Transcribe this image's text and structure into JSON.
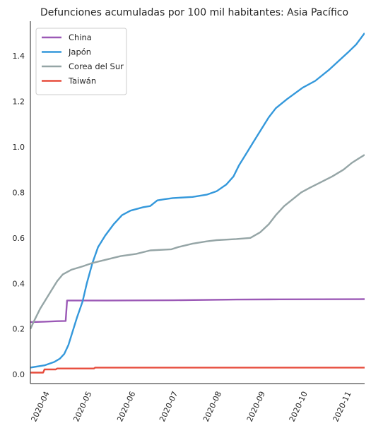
{
  "chart_data": {
    "type": "line",
    "title": "Defunciones acumuladas por 100 mil habitantes: Asia Pacífico",
    "xlabel": "",
    "ylabel": "",
    "x_range": [
      "2020-03-22",
      "2020-11-14"
    ],
    "ylim": [
      -0.04,
      1.54
    ],
    "y_ticks": [
      "0.0",
      "0.2",
      "0.4",
      "0.6",
      "0.8",
      "1.0",
      "1.2",
      "1.4"
    ],
    "x_ticks": [
      {
        "date": "2020-04-01",
        "label": "2020-04"
      },
      {
        "date": "2020-05-01",
        "label": "2020-05"
      },
      {
        "date": "2020-06-01",
        "label": "2020-06"
      },
      {
        "date": "2020-07-01",
        "label": "2020-07"
      },
      {
        "date": "2020-08-01",
        "label": "2020-08"
      },
      {
        "date": "2020-09-01",
        "label": "2020-09"
      },
      {
        "date": "2020-10-01",
        "label": "2020-10"
      },
      {
        "date": "2020-11-01",
        "label": "2020-11"
      }
    ],
    "grid": false,
    "legend_position": "top-left",
    "series": [
      {
        "name": "China",
        "color": "#9b59b6",
        "points": [
          [
            "2020-03-22",
            0.23
          ],
          [
            "2020-04-01",
            0.232
          ],
          [
            "2020-04-10",
            0.234
          ],
          [
            "2020-04-16",
            0.235
          ],
          [
            "2020-04-17",
            0.325
          ],
          [
            "2020-05-15",
            0.325
          ],
          [
            "2020-07-01",
            0.326
          ],
          [
            "2020-08-15",
            0.329
          ],
          [
            "2020-09-15",
            0.33
          ],
          [
            "2020-11-14",
            0.331
          ]
        ]
      },
      {
        "name": "Japón",
        "color": "#3498db",
        "points": [
          [
            "2020-03-22",
            0.03
          ],
          [
            "2020-04-01",
            0.04
          ],
          [
            "2020-04-08",
            0.055
          ],
          [
            "2020-04-12",
            0.07
          ],
          [
            "2020-04-15",
            0.09
          ],
          [
            "2020-04-18",
            0.13
          ],
          [
            "2020-04-21",
            0.19
          ],
          [
            "2020-04-24",
            0.25
          ],
          [
            "2020-04-28",
            0.32
          ],
          [
            "2020-05-01",
            0.4
          ],
          [
            "2020-05-05",
            0.49
          ],
          [
            "2020-05-09",
            0.56
          ],
          [
            "2020-05-14",
            0.61
          ],
          [
            "2020-05-20",
            0.66
          ],
          [
            "2020-05-26",
            0.7
          ],
          [
            "2020-06-01",
            0.72
          ],
          [
            "2020-06-10",
            0.735
          ],
          [
            "2020-06-15",
            0.74
          ],
          [
            "2020-06-20",
            0.765
          ],
          [
            "2020-06-25",
            0.77
          ],
          [
            "2020-07-01",
            0.775
          ],
          [
            "2020-07-15",
            0.78
          ],
          [
            "2020-07-25",
            0.79
          ],
          [
            "2020-08-01",
            0.805
          ],
          [
            "2020-08-08",
            0.835
          ],
          [
            "2020-08-13",
            0.87
          ],
          [
            "2020-08-17",
            0.92
          ],
          [
            "2020-08-22",
            0.97
          ],
          [
            "2020-08-27",
            1.02
          ],
          [
            "2020-09-01",
            1.07
          ],
          [
            "2020-09-07",
            1.13
          ],
          [
            "2020-09-12",
            1.17
          ],
          [
            "2020-09-20",
            1.21
          ],
          [
            "2020-10-01",
            1.26
          ],
          [
            "2020-10-10",
            1.29
          ],
          [
            "2020-10-20",
            1.34
          ],
          [
            "2020-10-27",
            1.38
          ],
          [
            "2020-11-03",
            1.42
          ],
          [
            "2020-11-08",
            1.45
          ],
          [
            "2020-11-14",
            1.5
          ]
        ]
      },
      {
        "name": "Corea del Sur",
        "color": "#95a5a6",
        "points": [
          [
            "2020-03-22",
            0.2
          ],
          [
            "2020-03-25",
            0.24
          ],
          [
            "2020-03-29",
            0.29
          ],
          [
            "2020-04-02",
            0.33
          ],
          [
            "2020-04-06",
            0.37
          ],
          [
            "2020-04-10",
            0.41
          ],
          [
            "2020-04-14",
            0.44
          ],
          [
            "2020-04-20",
            0.46
          ],
          [
            "2020-04-28",
            0.475
          ],
          [
            "2020-05-05",
            0.49
          ],
          [
            "2020-05-15",
            0.505
          ],
          [
            "2020-05-25",
            0.52
          ],
          [
            "2020-06-05",
            0.53
          ],
          [
            "2020-06-15",
            0.545
          ],
          [
            "2020-06-30",
            0.55
          ],
          [
            "2020-07-05",
            0.56
          ],
          [
            "2020-07-15",
            0.575
          ],
          [
            "2020-07-25",
            0.585
          ],
          [
            "2020-08-01",
            0.59
          ],
          [
            "2020-08-15",
            0.595
          ],
          [
            "2020-08-25",
            0.6
          ],
          [
            "2020-09-01",
            0.625
          ],
          [
            "2020-09-07",
            0.66
          ],
          [
            "2020-09-12",
            0.7
          ],
          [
            "2020-09-18",
            0.74
          ],
          [
            "2020-09-24",
            0.77
          ],
          [
            "2020-09-30",
            0.8
          ],
          [
            "2020-10-06",
            0.82
          ],
          [
            "2020-10-14",
            0.845
          ],
          [
            "2020-10-22",
            0.87
          ],
          [
            "2020-10-30",
            0.9
          ],
          [
            "2020-11-05",
            0.93
          ],
          [
            "2020-11-10",
            0.95
          ],
          [
            "2020-11-14",
            0.965
          ]
        ]
      },
      {
        "name": "Taiwán",
        "color": "#e74c3c",
        "points": [
          [
            "2020-03-22",
            0.008
          ],
          [
            "2020-03-31",
            0.008
          ],
          [
            "2020-04-01",
            0.022
          ],
          [
            "2020-04-09",
            0.022
          ],
          [
            "2020-04-10",
            0.026
          ],
          [
            "2020-05-06",
            0.026
          ],
          [
            "2020-05-07",
            0.03
          ],
          [
            "2020-11-14",
            0.03
          ]
        ]
      }
    ]
  }
}
